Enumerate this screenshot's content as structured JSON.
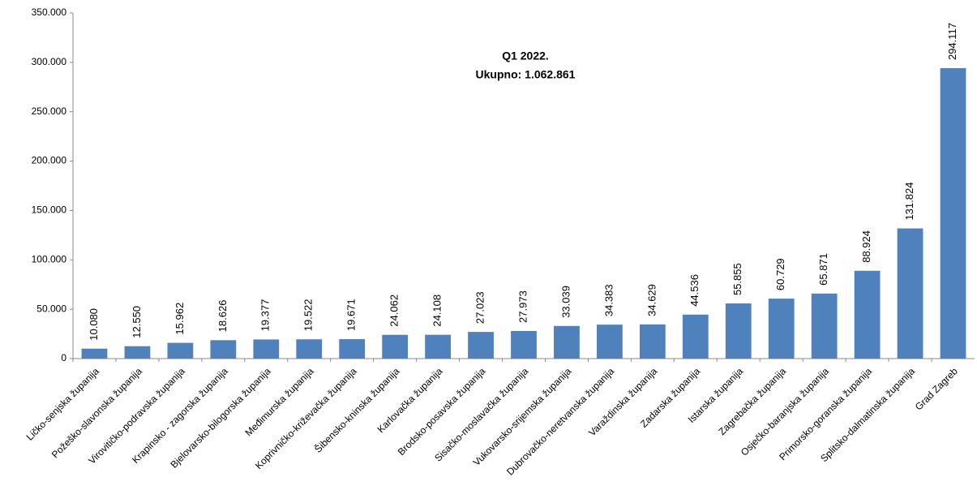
{
  "chart_data": {
    "type": "bar",
    "title": "Q1 2022.",
    "subtitle": "Ukupno: 1.062.861",
    "categories": [
      "Ličko-senjska županija",
      "Požeško-slavonska županija",
      "Virovitičko-podravska županija",
      "Krapinsko - zagorska županija",
      "Bjelovarsko-bilogorska županija",
      "Međimurska županija",
      "Koprivničko-križevačka županija",
      "Šibensko-kninska županija",
      "Karlovačka županija",
      "Brodsko-posavska županija",
      "Sisačko-moslavačka županija",
      "Vukovarsko-srijemska županija",
      "Dubrovačko-neretvanska županija",
      "Varaždinska županija",
      "Zadarska županija",
      "Istarska županija",
      "Zagrebačka županija",
      "Osječko-baranjska županija",
      "Primorsko-goranska županija",
      "Splitsko-dalmatinska županija",
      "Grad Zagreb"
    ],
    "values": [
      10080,
      12550,
      15962,
      18626,
      19377,
      19522,
      19671,
      24062,
      24108,
      27023,
      27973,
      33039,
      34383,
      34629,
      44536,
      55855,
      60729,
      65871,
      88924,
      131824,
      294117
    ],
    "value_labels": [
      "10.080",
      "12.550",
      "15.962",
      "18.626",
      "19.377",
      "19.522",
      "19.671",
      "24.062",
      "24.108",
      "27.023",
      "27.973",
      "33.039",
      "34.383",
      "34.629",
      "44.536",
      "55.855",
      "60.729",
      "65.871",
      "88.924",
      "131.824",
      "294.117"
    ],
    "color": "#4f81bd",
    "ylim": [
      0,
      350000
    ],
    "yticks": [
      0,
      {
        "value": 50000,
        "label": "50.000"
      },
      {
        "value": 100000,
        "label": "100.000"
      },
      {
        "value": 150000,
        "label": "150.000"
      },
      {
        "value": 200000,
        "label": "200.000"
      },
      {
        "value": 250000,
        "label": "250.000"
      },
      {
        "value": 300000,
        "label": "300.000"
      },
      {
        "value": 350000,
        "label": "350.000"
      }
    ],
    "grid": false
  }
}
